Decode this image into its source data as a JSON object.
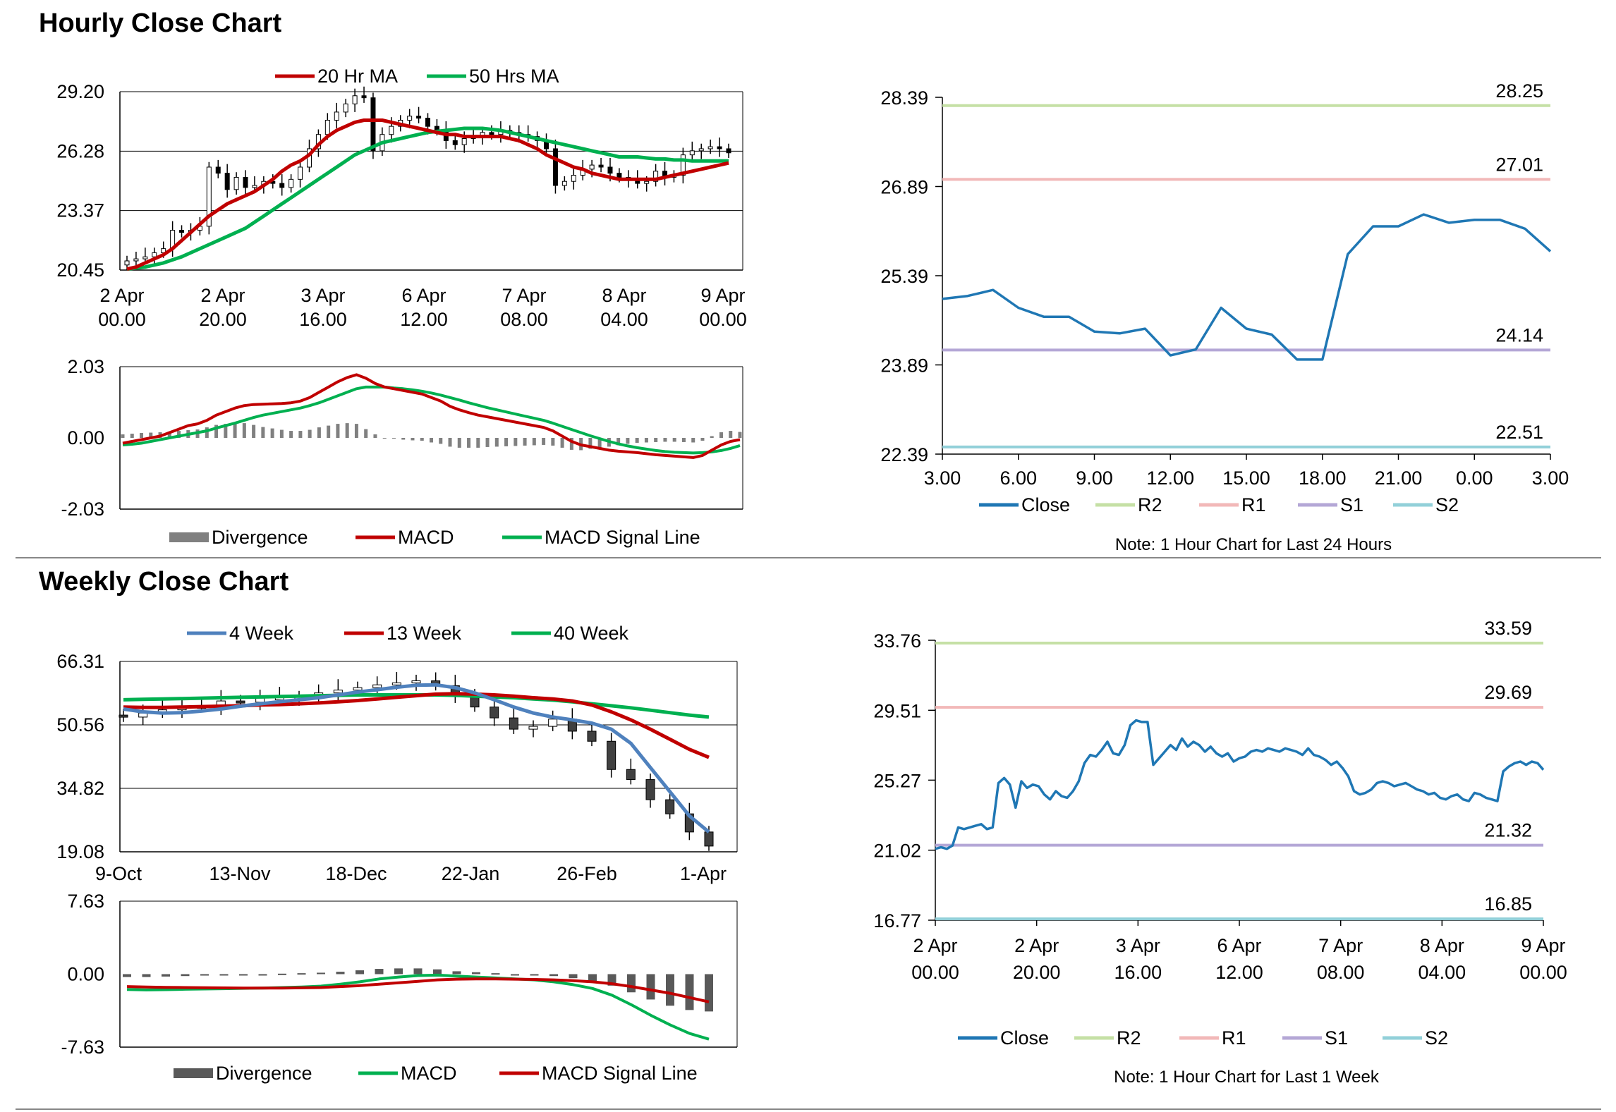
{
  "sections": {
    "hourly_title": "Hourly Close Chart",
    "weekly_title": "Weekly Close Chart"
  },
  "chart_data": [
    {
      "id": "hourly_price",
      "type": "candlestick",
      "title": "",
      "legend": [
        "20 Hr MA",
        "50 Hrs MA"
      ],
      "colors": {
        "ma20": "#c00000",
        "ma50": "#00b050",
        "candle": "#000000"
      },
      "ylim": [
        20.45,
        29.2
      ],
      "yticks": [
        "29.20",
        "26.28",
        "23.37",
        "20.45"
      ],
      "xticks": [
        [
          "2 Apr",
          "00.00"
        ],
        [
          "2 Apr",
          "20.00"
        ],
        [
          "3 Apr",
          "16.00"
        ],
        [
          "6 Apr",
          "12.00"
        ],
        [
          "7 Apr",
          "08.00"
        ],
        [
          "8 Apr",
          "04.00"
        ],
        [
          "9 Apr",
          "00.00"
        ]
      ],
      "close": [
        20.9,
        21.0,
        21.1,
        21.3,
        21.5,
        22.4,
        22.3,
        22.4,
        22.6,
        25.5,
        25.2,
        24.4,
        25.0,
        24.5,
        24.6,
        24.8,
        24.7,
        24.5,
        24.9,
        25.5,
        26.4,
        27.1,
        27.8,
        28.2,
        28.6,
        29.0,
        28.9,
        26.3,
        27.1,
        27.5,
        27.8,
        28.0,
        27.9,
        27.5,
        27.3,
        26.8,
        26.6,
        26.9,
        27.0,
        27.2,
        27.1,
        27.3,
        27.2,
        27.1,
        27.0,
        26.8,
        26.4,
        24.6,
        24.8,
        25.1,
        25.4,
        25.6,
        25.5,
        25.2,
        25.0,
        24.9,
        24.7,
        24.8,
        25.3,
        25.0,
        25.1,
        26.1,
        26.3,
        26.4,
        26.5,
        26.4,
        26.2
      ],
      "ma20": [
        20.5,
        20.6,
        20.8,
        21.0,
        21.2,
        21.5,
        21.9,
        22.3,
        22.7,
        23.1,
        23.4,
        23.7,
        23.9,
        24.1,
        24.3,
        24.6,
        24.9,
        25.3,
        25.6,
        25.8,
        26.1,
        26.6,
        27.0,
        27.3,
        27.5,
        27.7,
        27.8,
        27.8,
        27.8,
        27.7,
        27.6,
        27.5,
        27.4,
        27.3,
        27.2,
        27.1,
        27.1,
        27.0,
        27.0,
        27.0,
        27.0,
        27.0,
        26.9,
        26.8,
        26.6,
        26.4,
        26.1,
        25.9,
        25.7,
        25.5,
        25.4,
        25.2,
        25.1,
        25.0,
        24.9,
        24.9,
        24.9,
        24.9,
        24.9,
        25.0,
        25.1,
        25.2,
        25.3,
        25.4,
        25.5,
        25.6,
        25.7
      ],
      "ma50": [
        20.5,
        20.55,
        20.6,
        20.7,
        20.8,
        20.95,
        21.1,
        21.3,
        21.5,
        21.7,
        21.9,
        22.1,
        22.3,
        22.5,
        22.8,
        23.1,
        23.4,
        23.7,
        24.0,
        24.3,
        24.6,
        24.9,
        25.2,
        25.5,
        25.8,
        26.1,
        26.3,
        26.5,
        26.7,
        26.8,
        26.9,
        27.0,
        27.1,
        27.2,
        27.25,
        27.3,
        27.35,
        27.4,
        27.4,
        27.4,
        27.35,
        27.3,
        27.2,
        27.1,
        27.0,
        26.9,
        26.8,
        26.7,
        26.6,
        26.5,
        26.4,
        26.3,
        26.2,
        26.1,
        26.0,
        26.0,
        26.0,
        25.95,
        25.9,
        25.9,
        25.85,
        25.85,
        25.8,
        25.8,
        25.8,
        25.8,
        25.8
      ]
    },
    {
      "id": "hourly_macd",
      "type": "macd",
      "legend": [
        "Divergence",
        "MACD",
        "MACD Signal Line"
      ],
      "colors": {
        "divergence": "#808080",
        "macd": "#c00000",
        "signal": "#00b050"
      },
      "ylim": [
        -2.03,
        2.03
      ],
      "yticks": [
        "2.03",
        "0.00",
        "-2.03"
      ],
      "macd": [
        -0.15,
        -0.1,
        -0.05,
        0.0,
        0.05,
        0.15,
        0.25,
        0.35,
        0.4,
        0.5,
        0.65,
        0.75,
        0.85,
        0.92,
        0.95,
        0.96,
        0.97,
        0.98,
        1.0,
        1.05,
        1.15,
        1.3,
        1.45,
        1.6,
        1.72,
        1.8,
        1.7,
        1.55,
        1.45,
        1.4,
        1.35,
        1.3,
        1.25,
        1.15,
        1.05,
        0.9,
        0.8,
        0.72,
        0.65,
        0.6,
        0.55,
        0.5,
        0.45,
        0.4,
        0.35,
        0.3,
        0.2,
        0.05,
        -0.1,
        -0.2,
        -0.25,
        -0.3,
        -0.35,
        -0.38,
        -0.4,
        -0.42,
        -0.45,
        -0.48,
        -0.5,
        -0.52,
        -0.54,
        -0.56,
        -0.5,
        -0.35,
        -0.2,
        -0.1,
        -0.05
      ],
      "signal": [
        -0.2,
        -0.18,
        -0.15,
        -0.1,
        -0.05,
        0.0,
        0.05,
        0.1,
        0.15,
        0.2,
        0.28,
        0.35,
        0.42,
        0.5,
        0.58,
        0.65,
        0.7,
        0.75,
        0.8,
        0.85,
        0.92,
        1.0,
        1.1,
        1.2,
        1.3,
        1.4,
        1.45,
        1.45,
        1.45,
        1.42,
        1.4,
        1.37,
        1.33,
        1.28,
        1.22,
        1.15,
        1.08,
        1.0,
        0.93,
        0.86,
        0.8,
        0.74,
        0.68,
        0.62,
        0.56,
        0.5,
        0.42,
        0.33,
        0.24,
        0.15,
        0.06,
        -0.02,
        -0.1,
        -0.17,
        -0.23,
        -0.28,
        -0.32,
        -0.36,
        -0.39,
        -0.41,
        -0.42,
        -0.43,
        -0.42,
        -0.4,
        -0.36,
        -0.3,
        -0.22
      ],
      "divergence": [
        0.1,
        0.12,
        0.14,
        0.15,
        0.16,
        0.18,
        0.2,
        0.22,
        0.24,
        0.3,
        0.37,
        0.4,
        0.43,
        0.42,
        0.37,
        0.31,
        0.27,
        0.23,
        0.2,
        0.2,
        0.23,
        0.3,
        0.35,
        0.4,
        0.42,
        0.4,
        0.25,
        0.1,
        0.0,
        -0.02,
        -0.05,
        -0.07,
        -0.08,
        -0.13,
        -0.17,
        -0.25,
        -0.28,
        -0.28,
        -0.28,
        -0.26,
        -0.25,
        -0.24,
        -0.23,
        -0.22,
        -0.21,
        -0.2,
        -0.22,
        -0.28,
        -0.34,
        -0.35,
        -0.31,
        -0.28,
        -0.25,
        -0.21,
        -0.17,
        -0.14,
        -0.13,
        -0.12,
        -0.11,
        -0.11,
        -0.12,
        -0.13,
        -0.08,
        0.05,
        0.16,
        0.2,
        0.17
      ]
    },
    {
      "id": "hourly_24h",
      "type": "line",
      "note": "Note: 1 Hour Chart for Last 24 Hours",
      "legend": [
        "Close",
        "R2",
        "R1",
        "S1",
        "S2"
      ],
      "colors": {
        "close": "#1f77b4",
        "r2": "#c5e0a5",
        "r1": "#f2b8b8",
        "s1": "#b4a7d6",
        "s2": "#92d0d9"
      },
      "ylim": [
        22.39,
        28.39
      ],
      "yticks": [
        "28.39",
        "26.89",
        "25.39",
        "23.89",
        "22.39"
      ],
      "xticks": [
        "3.00",
        "6.00",
        "9.00",
        "12.00",
        "15.00",
        "18.00",
        "21.00",
        "0.00",
        "3.00"
      ],
      "levels": {
        "r2": 28.25,
        "r1": 27.01,
        "s1": 24.14,
        "s2": 22.51
      },
      "level_labels": {
        "r2": "28.25",
        "r1": "27.01",
        "s1": "24.14",
        "s2": "22.51"
      },
      "x": [
        3,
        4,
        5,
        6,
        7,
        8,
        9,
        10,
        11,
        12,
        13,
        14,
        15,
        16,
        17,
        18,
        19,
        20,
        21,
        22,
        23,
        24,
        25,
        26,
        27
      ],
      "close": [
        25.0,
        25.05,
        25.15,
        24.85,
        24.7,
        24.7,
        24.45,
        24.42,
        24.5,
        24.05,
        24.15,
        24.85,
        24.5,
        24.4,
        23.98,
        23.98,
        25.75,
        26.22,
        26.22,
        26.42,
        26.28,
        26.33,
        26.33,
        26.18,
        25.8
      ]
    },
    {
      "id": "weekly_price",
      "type": "candlestick",
      "legend": [
        "4 Week",
        "13 Week",
        "40 Week"
      ],
      "colors": {
        "ma4": "#4f81bd",
        "ma13": "#c00000",
        "ma40": "#00b050"
      },
      "ylim": [
        19.08,
        66.31
      ],
      "yticks": [
        "66.31",
        "50.56",
        "34.82",
        "19.08"
      ],
      "xticks": [
        "9-Oct",
        "13-Nov",
        "18-Dec",
        "22-Jan",
        "26-Feb",
        "1-Apr"
      ],
      "close": [
        52.5,
        53.5,
        54.3,
        55.2,
        55.0,
        56.5,
        56.2,
        57.2,
        57.3,
        57.5,
        58.5,
        59.2,
        59.8,
        60.5,
        61.0,
        61.5,
        60.3,
        58.0,
        55.0,
        52.3,
        49.5,
        50.2,
        52.0,
        49.0,
        46.5,
        39.5,
        37.0,
        32.0,
        28.5,
        24.0,
        20.5
      ],
      "ma4": [
        54.5,
        53.8,
        53.5,
        53.6,
        54.0,
        54.5,
        55.2,
        55.8,
        56.3,
        56.8,
        57.3,
        58.0,
        58.7,
        59.3,
        59.9,
        60.4,
        60.5,
        59.8,
        58.5,
        56.8,
        55.0,
        53.5,
        52.5,
        51.8,
        51.0,
        49.5,
        46.0,
        40.0,
        34.0,
        28.0,
        24.0
      ],
      "ma13": [
        55.0,
        54.9,
        54.9,
        55.0,
        55.1,
        55.2,
        55.3,
        55.5,
        55.6,
        55.8,
        56.0,
        56.3,
        56.6,
        57.0,
        57.4,
        57.8,
        58.2,
        58.3,
        58.2,
        58.0,
        57.7,
        57.3,
        57.0,
        56.5,
        55.5,
        53.8,
        51.8,
        49.5,
        47.0,
        44.5,
        42.5
      ],
      "ma40": [
        56.8,
        56.9,
        57.0,
        57.1,
        57.2,
        57.3,
        57.4,
        57.5,
        57.6,
        57.7,
        57.8,
        57.9,
        58.0,
        58.0,
        58.0,
        58.0,
        58.0,
        57.9,
        57.7,
        57.5,
        57.3,
        57.0,
        56.7,
        56.3,
        55.8,
        55.3,
        54.8,
        54.2,
        53.6,
        53.0,
        52.5
      ]
    },
    {
      "id": "weekly_macd",
      "type": "macd",
      "legend": [
        "Divergence",
        "MACD",
        "MACD Signal Line"
      ],
      "colors": {
        "divergence": "#595959",
        "macd": "#00b050",
        "signal": "#c00000"
      },
      "ylim": [
        -7.63,
        7.63
      ],
      "yticks": [
        "7.63",
        "0.00",
        "-7.63"
      ],
      "macd": [
        -1.6,
        -1.65,
        -1.62,
        -1.58,
        -1.55,
        -1.52,
        -1.48,
        -1.45,
        -1.4,
        -1.35,
        -1.25,
        -1.05,
        -0.8,
        -0.5,
        -0.3,
        -0.15,
        -0.1,
        -0.2,
        -0.3,
        -0.4,
        -0.5,
        -0.6,
        -0.8,
        -1.1,
        -1.5,
        -2.2,
        -3.2,
        -4.3,
        -5.3,
        -6.2,
        -6.8
      ],
      "signal": [
        -1.3,
        -1.35,
        -1.38,
        -1.4,
        -1.42,
        -1.44,
        -1.45,
        -1.45,
        -1.45,
        -1.43,
        -1.4,
        -1.3,
        -1.2,
        -1.05,
        -0.9,
        -0.75,
        -0.6,
        -0.52,
        -0.5,
        -0.5,
        -0.52,
        -0.55,
        -0.6,
        -0.68,
        -0.8,
        -1.0,
        -1.3,
        -1.65,
        -2.0,
        -2.45,
        -2.9
      ],
      "divergence": [
        -0.3,
        -0.3,
        -0.25,
        -0.2,
        -0.15,
        -0.1,
        -0.05,
        0.0,
        0.05,
        0.1,
        0.15,
        0.25,
        0.4,
        0.55,
        0.6,
        0.6,
        0.5,
        0.3,
        0.2,
        0.1,
        0.0,
        -0.05,
        -0.2,
        -0.42,
        -0.7,
        -1.2,
        -1.9,
        -2.65,
        -3.3,
        -3.75,
        -3.9
      ]
    },
    {
      "id": "weekly_1w",
      "type": "line",
      "note": "Note: 1 Hour Chart for Last 1 Week",
      "legend": [
        "Close",
        "R2",
        "R1",
        "S1",
        "S2"
      ],
      "colors": {
        "close": "#1f77b4",
        "r2": "#c5e0a5",
        "r1": "#f2b8b8",
        "s1": "#b4a7d6",
        "s2": "#92d0d9"
      },
      "ylim": [
        16.77,
        33.76
      ],
      "yticks": [
        "33.76",
        "29.51",
        "25.27",
        "21.02",
        "16.77"
      ],
      "xticks": [
        [
          "2 Apr",
          "00.00"
        ],
        [
          "2 Apr",
          "20.00"
        ],
        [
          "3 Apr",
          "16.00"
        ],
        [
          "6 Apr",
          "12.00"
        ],
        [
          "7 Apr",
          "08.00"
        ],
        [
          "8 Apr",
          "04.00"
        ],
        [
          "9 Apr",
          "00.00"
        ]
      ],
      "levels": {
        "r2": 33.59,
        "r1": 29.69,
        "s1": 21.32,
        "s2": 16.85
      },
      "level_labels": {
        "r2": "33.59",
        "r1": "29.69",
        "s1": "21.32",
        "s2": "16.85"
      },
      "close": [
        21.1,
        21.2,
        21.1,
        21.3,
        22.4,
        22.3,
        22.4,
        22.5,
        22.6,
        22.3,
        22.4,
        25.1,
        25.4,
        25.0,
        23.6,
        25.2,
        24.8,
        25.0,
        24.9,
        24.4,
        24.1,
        24.6,
        24.3,
        24.2,
        24.6,
        25.2,
        26.3,
        26.8,
        26.7,
        27.1,
        27.6,
        26.9,
        26.8,
        27.4,
        28.6,
        28.9,
        28.8,
        28.8,
        26.2,
        26.6,
        27.0,
        27.4,
        27.1,
        27.8,
        27.3,
        27.6,
        27.4,
        27.0,
        27.3,
        26.9,
        26.7,
        26.9,
        26.4,
        26.6,
        26.7,
        27.0,
        27.1,
        27.0,
        27.2,
        27.1,
        27.0,
        27.2,
        27.1,
        27.0,
        26.8,
        27.2,
        26.8,
        26.7,
        26.5,
        26.2,
        26.4,
        26.0,
        25.5,
        24.6,
        24.4,
        24.5,
        24.7,
        25.1,
        25.2,
        25.1,
        24.9,
        25.0,
        25.1,
        24.9,
        24.7,
        24.6,
        24.4,
        24.5,
        24.2,
        24.1,
        24.3,
        24.4,
        24.1,
        24.0,
        24.5,
        24.4,
        24.2,
        24.1,
        24.0,
        25.8,
        26.1,
        26.3,
        26.4,
        26.2,
        26.4,
        26.3,
        25.9
      ]
    }
  ]
}
